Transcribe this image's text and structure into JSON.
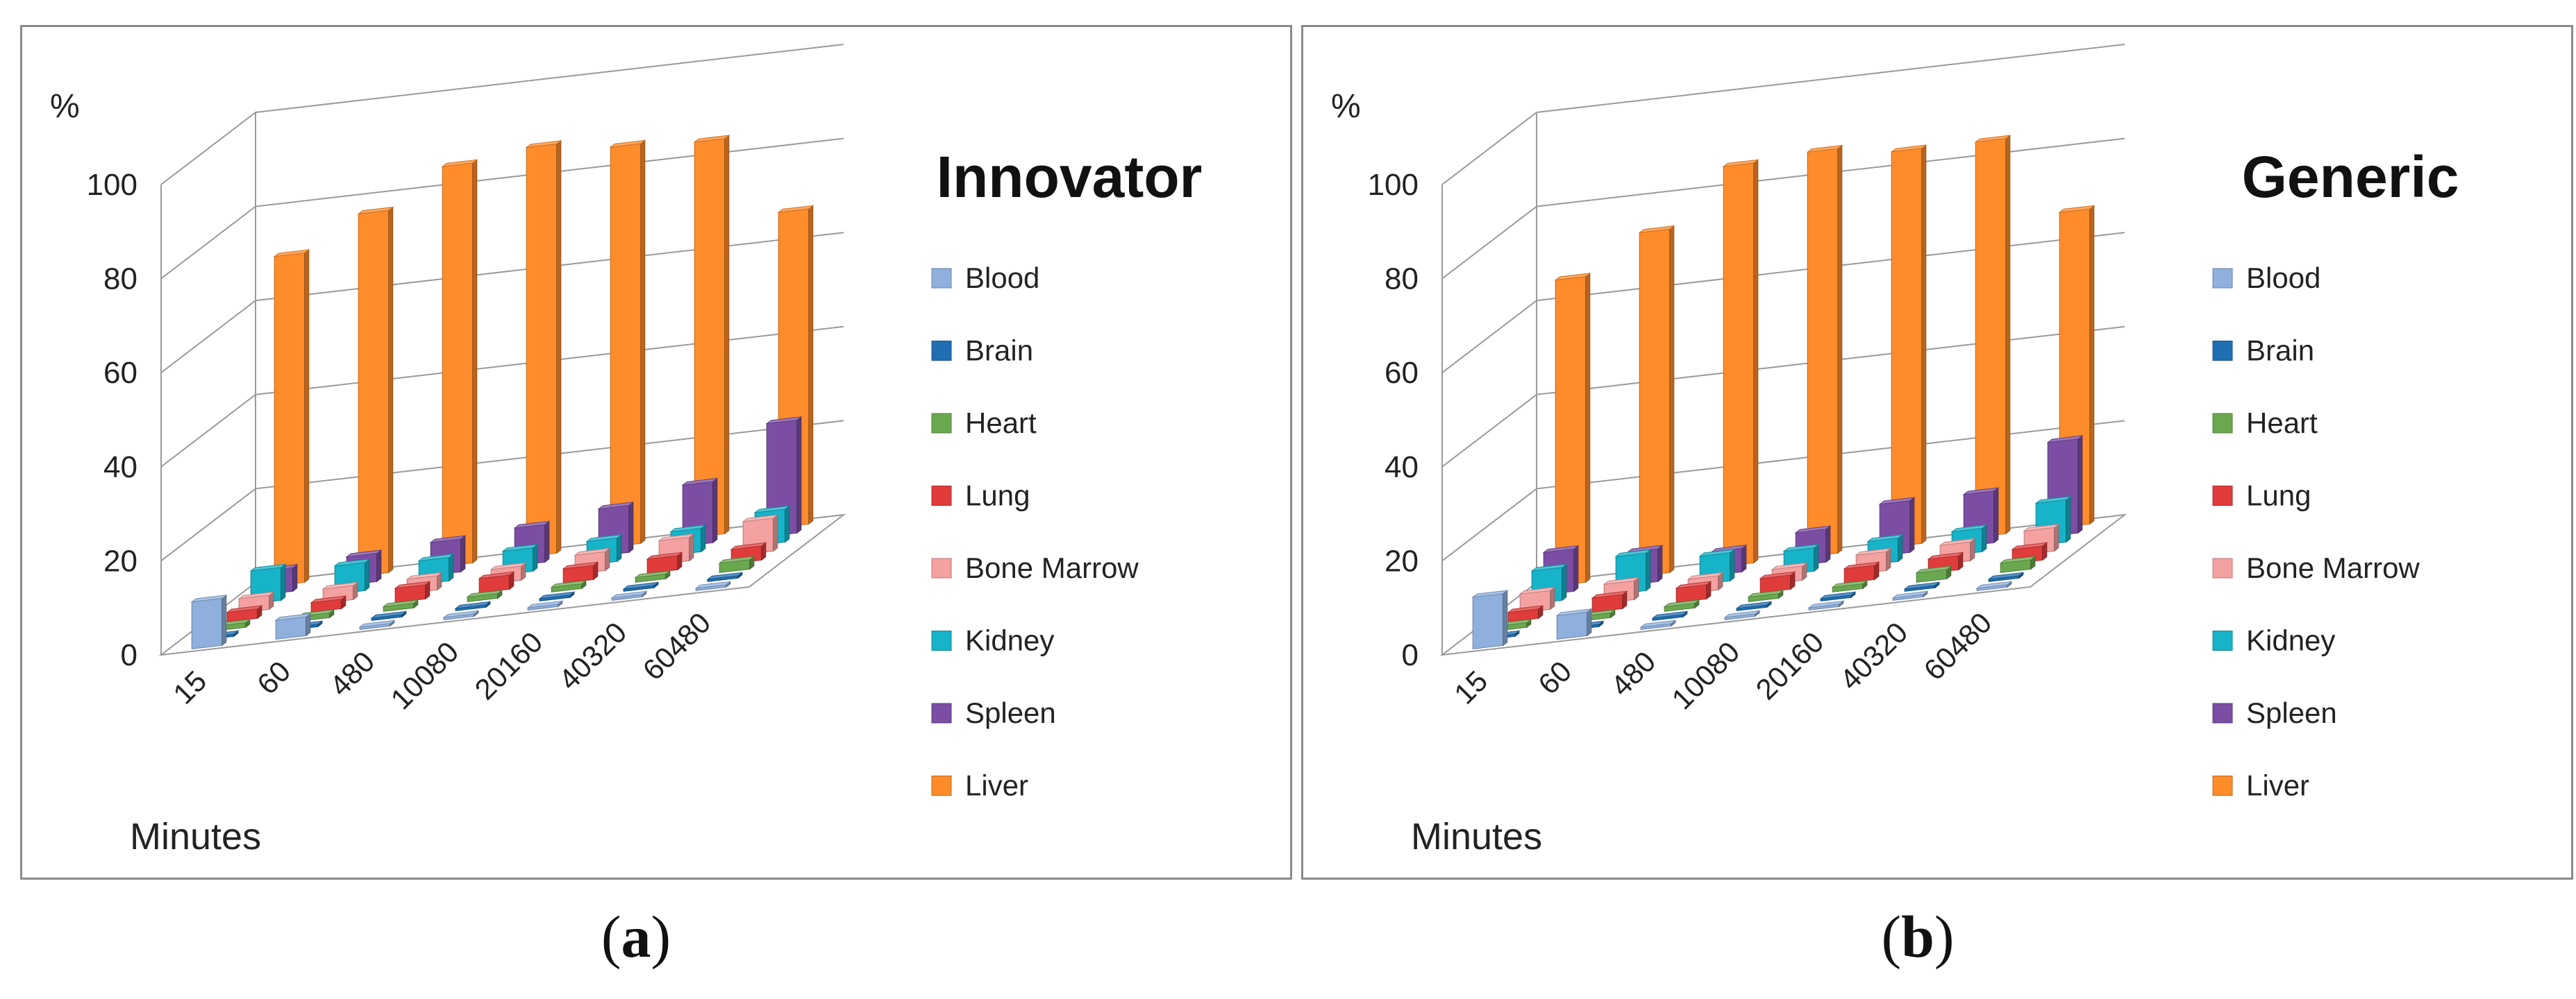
{
  "chart_data": [
    {
      "type": "bar3d",
      "title": "Innovator",
      "ylabel": "%",
      "xlabel": "Minutes",
      "ylim": [
        0,
        100
      ],
      "yticks": [
        "0",
        "20",
        "40",
        "60",
        "80",
        "100"
      ],
      "categories": [
        "15",
        "60",
        "480",
        "10080",
        "20160",
        "40320",
        "60480"
      ],
      "series": [
        {
          "name": "Blood",
          "color": "#8fb0dd",
          "values": [
            10,
            4,
            0.5,
            0.5,
            0.5,
            0.5,
            0.5
          ]
        },
        {
          "name": "Brain",
          "color": "#1f6fb2",
          "values": [
            0.5,
            0.5,
            0.5,
            0.5,
            0.5,
            0.5,
            0.5
          ]
        },
        {
          "name": "Heart",
          "color": "#6aa84f",
          "values": [
            1,
            1,
            1,
            1,
            1,
            1,
            2
          ]
        },
        {
          "name": "Lung",
          "color": "#e03c3c",
          "values": [
            2,
            2,
            3,
            3,
            3,
            3,
            3
          ]
        },
        {
          "name": "Bone Marrow",
          "color": "#f4a1a1",
          "values": [
            3,
            3,
            3,
            3,
            4,
            5,
            7
          ]
        },
        {
          "name": "Kidney",
          "color": "#17b3c8",
          "values": [
            7,
            6,
            5,
            5,
            5,
            5,
            7
          ]
        },
        {
          "name": "Spleen",
          "color": "#7b4ea4",
          "values": [
            5,
            6,
            7,
            8,
            10,
            13,
            24
          ]
        },
        {
          "name": "Liver",
          "color": "#ff8c2b",
          "values": [
            70,
            77,
            85,
            87,
            85,
            84,
            67
          ]
        }
      ],
      "caption_label": "a"
    },
    {
      "type": "bar3d",
      "title": "Generic",
      "ylabel": "%",
      "xlabel": "Minutes",
      "ylim": [
        0,
        100
      ],
      "yticks": [
        "0",
        "20",
        "40",
        "60",
        "80",
        "100"
      ],
      "categories": [
        "15",
        "60",
        "480",
        "10080",
        "20160",
        "40320",
        "60480"
      ],
      "series": [
        {
          "name": "Blood",
          "color": "#8fb0dd",
          "values": [
            11,
            5,
            0.5,
            0.5,
            0.5,
            0.5,
            0.5
          ]
        },
        {
          "name": "Brain",
          "color": "#1f6fb2",
          "values": [
            0.5,
            0.5,
            0.5,
            0.5,
            0.5,
            0.5,
            0.5
          ]
        },
        {
          "name": "Heart",
          "color": "#6aa84f",
          "values": [
            1,
            1,
            1,
            1,
            1,
            2,
            2
          ]
        },
        {
          "name": "Lung",
          "color": "#e03c3c",
          "values": [
            2,
            3,
            3,
            3,
            3,
            3,
            3
          ]
        },
        {
          "name": "Bone Marrow",
          "color": "#f4a1a1",
          "values": [
            4,
            4,
            3,
            3,
            4,
            4,
            5
          ]
        },
        {
          "name": "Kidney",
          "color": "#17b3c8",
          "values": [
            7,
            8,
            6,
            5,
            5,
            5,
            9
          ]
        },
        {
          "name": "Spleen",
          "color": "#7b4ea4",
          "values": [
            9,
            7,
            5,
            7,
            11,
            11,
            20
          ]
        },
        {
          "name": "Liver",
          "color": "#ff8c2b",
          "values": [
            65,
            73,
            85,
            86,
            84,
            84,
            67
          ]
        }
      ],
      "caption_label": "b"
    }
  ]
}
